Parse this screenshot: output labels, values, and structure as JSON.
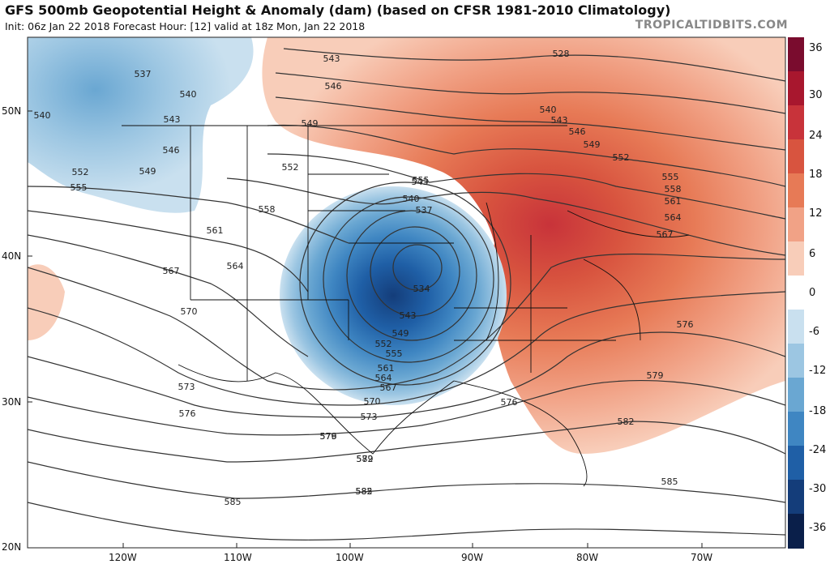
{
  "header": {
    "title": "GFS 500mb Geopotential Height & Anomaly (dam) (based on CFSR 1981-2010 Climatology)",
    "subtitle": "Init: 06z Jan 22 2018   Forecast Hour: [12]   valid at 18z Mon, Jan 22 2018",
    "brand": "TROPICALTIDBITS.COM"
  },
  "colorbar": {
    "ticks": [
      "36",
      "30",
      "24",
      "18",
      "12",
      "6",
      "0",
      "-6",
      "-12",
      "-18",
      "-24",
      "-30",
      "-36"
    ],
    "colors": [
      "#7a0c2e",
      "#a8172e",
      "#c8333a",
      "#d8543f",
      "#e77a56",
      "#f1a286",
      "#f8cdb9",
      "#ffffff",
      "#c9e0ef",
      "#9cc6e2",
      "#6aa7d2",
      "#3f86c2",
      "#1f5fa6",
      "#143d7a",
      "#0a1f4a"
    ]
  },
  "axes": {
    "lat_labels": [
      "50N",
      "40N",
      "30N",
      "20N"
    ],
    "lon_labels": [
      "120W",
      "110W",
      "100W",
      "90W",
      "80W",
      "70W"
    ]
  },
  "contour_labels": [
    "537",
    "540",
    "540",
    "543",
    "546",
    "549",
    "552",
    "555",
    "558",
    "561",
    "564",
    "567",
    "570",
    "573",
    "576",
    "579",
    "582",
    "585",
    "543",
    "546",
    "549",
    "552",
    "555",
    "528",
    "540",
    "543",
    "546",
    "549",
    "552",
    "555",
    "558",
    "561",
    "564",
    "567",
    "576",
    "579",
    "582",
    "585",
    "576",
    "543",
    "540",
    "537",
    "534",
    "543",
    "549",
    "552",
    "555",
    "561",
    "564",
    "567",
    "570",
    "573",
    "576",
    "579",
    "582",
    "585"
  ]
}
